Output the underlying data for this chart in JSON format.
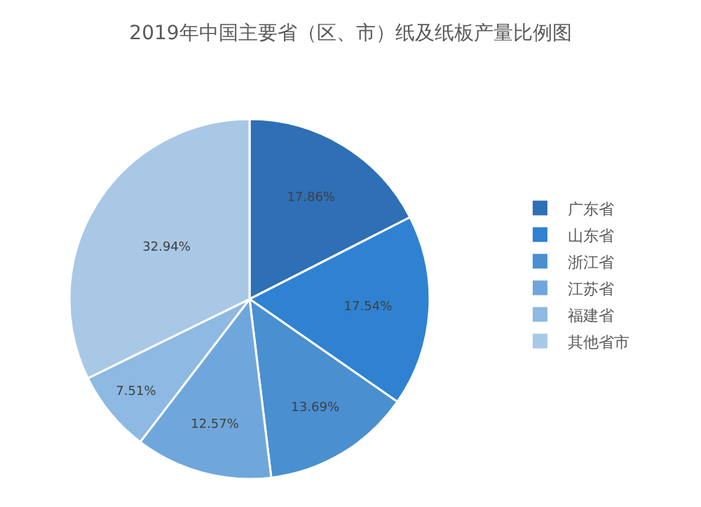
{
  "chart_data": {
    "type": "pie",
    "title": "2019年中国主要省（区、市）纸及纸板产量比例图",
    "categories": [
      "广东省",
      "山东省",
      "浙江省",
      "江苏省",
      "福建省",
      "其他省市"
    ],
    "values": [
      17.86,
      17.54,
      13.69,
      12.57,
      7.51,
      32.94
    ],
    "colors": [
      "#2e6fb5",
      "#2f82d2",
      "#4a8fd0",
      "#6fa7dc",
      "#8db9e2",
      "#a9c8e6"
    ],
    "value_labels": [
      "17.86%",
      "17.54%",
      "13.69%",
      "12.57%",
      "7.51%",
      "32.94%"
    ],
    "legend": "right"
  }
}
